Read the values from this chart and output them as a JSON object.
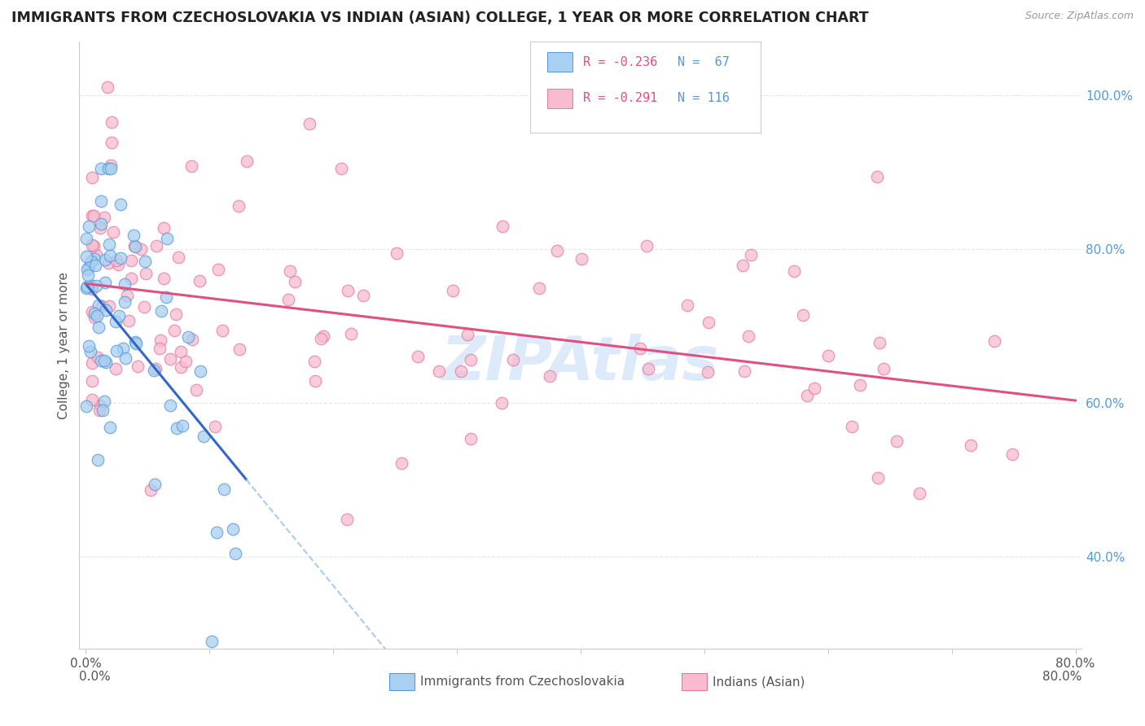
{
  "title": "IMMIGRANTS FROM CZECHOSLOVAKIA VS INDIAN (ASIAN) COLLEGE, 1 YEAR OR MORE CORRELATION CHART",
  "source_text": "Source: ZipAtlas.com",
  "ylabel": "College, 1 year or more",
  "xlim": [
    -0.005,
    0.805
  ],
  "ylim": [
    0.28,
    1.07
  ],
  "xtick_vals": [
    0.0,
    0.1,
    0.2,
    0.3,
    0.4,
    0.5,
    0.6,
    0.7,
    0.8
  ],
  "xticklabels": [
    "0.0%",
    "",
    "",
    "",
    "",
    "",
    "",
    "",
    "80.0%"
  ],
  "ytick_vals": [
    0.4,
    0.6,
    0.8,
    1.0
  ],
  "yticklabels": [
    "40.0%",
    "60.0%",
    "80.0%",
    "100.0%"
  ],
  "legend_r1": "R = -0.236",
  "legend_n1": "N =  67",
  "legend_r2": "R = -0.291",
  "legend_n2": "N = 116",
  "color_blue_fill": "#a8d0f0",
  "color_blue_edge": "#5599dd",
  "color_pink_fill": "#f8bbd0",
  "color_pink_edge": "#e87a9a",
  "color_blue_line": "#3366cc",
  "color_pink_line": "#e05080",
  "color_dashed": "#aaccee",
  "watermark": "ZIPAtlas",
  "grid_color": "#e0e8f0",
  "ytick_color": "#5599dd",
  "title_color": "#222222",
  "source_color": "#999999",
  "label_color": "#555555"
}
